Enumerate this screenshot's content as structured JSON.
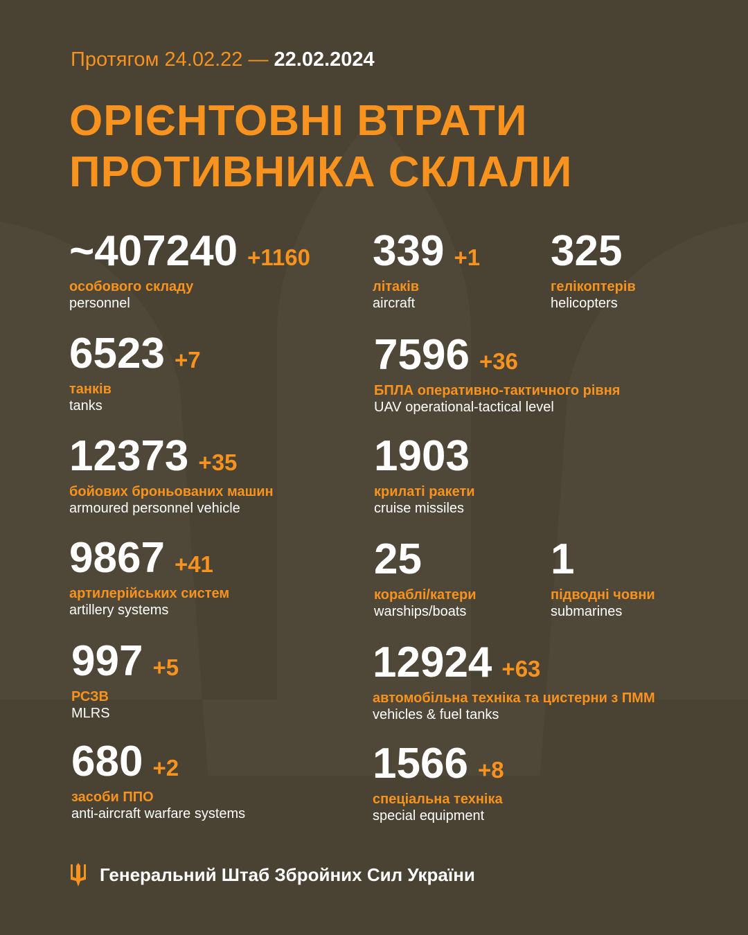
{
  "header": {
    "period_prefix": "Протягом 24.02.22 —",
    "period_end": "22.02.2024",
    "title_line1": "ОРІЄНТОВНІ ВТРАТИ",
    "title_line2": "ПРОТИВНИКА СКЛАЛИ"
  },
  "items": [
    {
      "value": "~407240",
      "delta": "+1160",
      "ua": "особового складу",
      "en": "personnel"
    },
    {
      "value": "6523",
      "delta": "+7",
      "ua": "танків",
      "en": "tanks"
    },
    {
      "value": "12373",
      "delta": "+35",
      "ua": "бойових броньованих машин",
      "en": "armoured personnel vehicle"
    },
    {
      "value": "9867",
      "delta": "+41",
      "ua": "артилерійських систем",
      "en": "artillery systems"
    },
    {
      "value": "997",
      "delta": "+5",
      "ua": "РСЗВ",
      "en": "MLRS"
    },
    {
      "value": "680",
      "delta": "+2",
      "ua": "засоби ППО",
      "en": "anti-aircraft warfare systems"
    },
    {
      "value": "339",
      "delta": "+1",
      "ua": "літаків",
      "en": "aircraft"
    },
    {
      "value": "325",
      "delta": "",
      "ua": "гелікоптерів",
      "en": "helicopters"
    },
    {
      "value": "7596",
      "delta": "+36",
      "ua": "БПЛА оперативно-тактичного рівня",
      "en": "UAV operational-tactical level"
    },
    {
      "value": "1903",
      "delta": "",
      "ua": "крилаті ракети",
      "en": "cruise missiles"
    },
    {
      "value": "25",
      "delta": "",
      "ua": "кораблі/катери",
      "en": "warships/boats"
    },
    {
      "value": "1",
      "delta": "",
      "ua": "підводні човни",
      "en": "submarines"
    },
    {
      "value": "12924",
      "delta": "+63",
      "ua": "автомобільна техніка та цистерни з ПММ",
      "en": "vehicles & fuel tanks"
    },
    {
      "value": "1566",
      "delta": "+8",
      "ua": "спеціальна техніка",
      "en": "special equipment"
    }
  ],
  "footer": {
    "org": "Генеральний Штаб Збройних Сил України",
    "logo_icon": "trident-icon"
  },
  "colors": {
    "background": "#4a4233",
    "accent": "#f7931e",
    "text": "#ffffff"
  }
}
